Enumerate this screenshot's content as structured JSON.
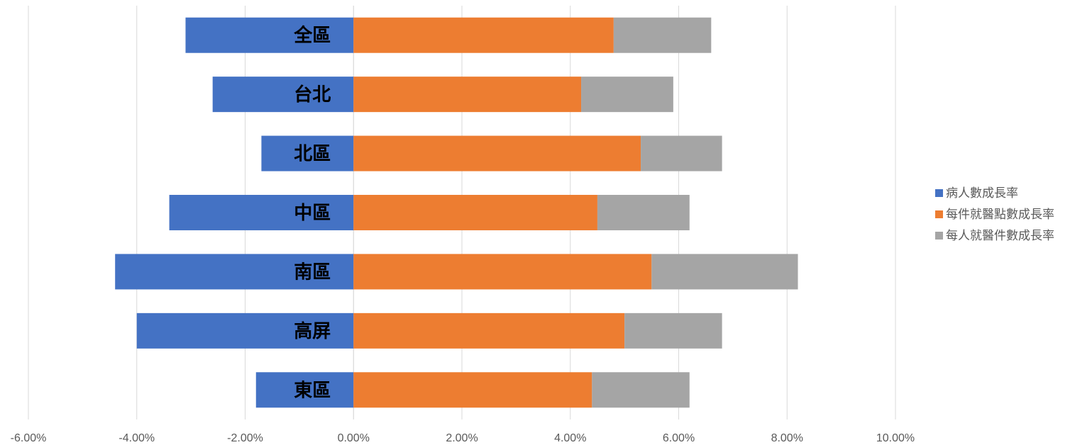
{
  "chart_data": {
    "type": "bar",
    "orientation": "horizontal",
    "stacked": true,
    "categories": [
      "全區",
      "台北",
      "北區",
      "中區",
      "南區",
      "高屏",
      "東區"
    ],
    "series": [
      {
        "name": "病人數成長率",
        "color": "#4472C4",
        "values": [
          -3.1,
          -2.6,
          -1.7,
          -3.4,
          -4.4,
          -4.0,
          -1.8
        ]
      },
      {
        "name": "每件就醫點數成長率",
        "color": "#ED7D31",
        "values": [
          4.8,
          4.2,
          5.3,
          4.5,
          5.5,
          5.0,
          4.4
        ]
      },
      {
        "name": "每人就醫件數成長率",
        "color": "#A5A5A5",
        "values": [
          1.8,
          1.7,
          1.5,
          1.7,
          2.7,
          1.8,
          1.8
        ]
      }
    ],
    "xlim": [
      -6,
      10
    ],
    "xticks": [
      "-6.00%",
      "-4.00%",
      "-2.00%",
      "0.00%",
      "2.00%",
      "4.00%",
      "6.00%",
      "8.00%",
      "10.00%"
    ],
    "title": "",
    "xlabel": "",
    "ylabel": "",
    "grid": "vertical",
    "legend": "right"
  }
}
